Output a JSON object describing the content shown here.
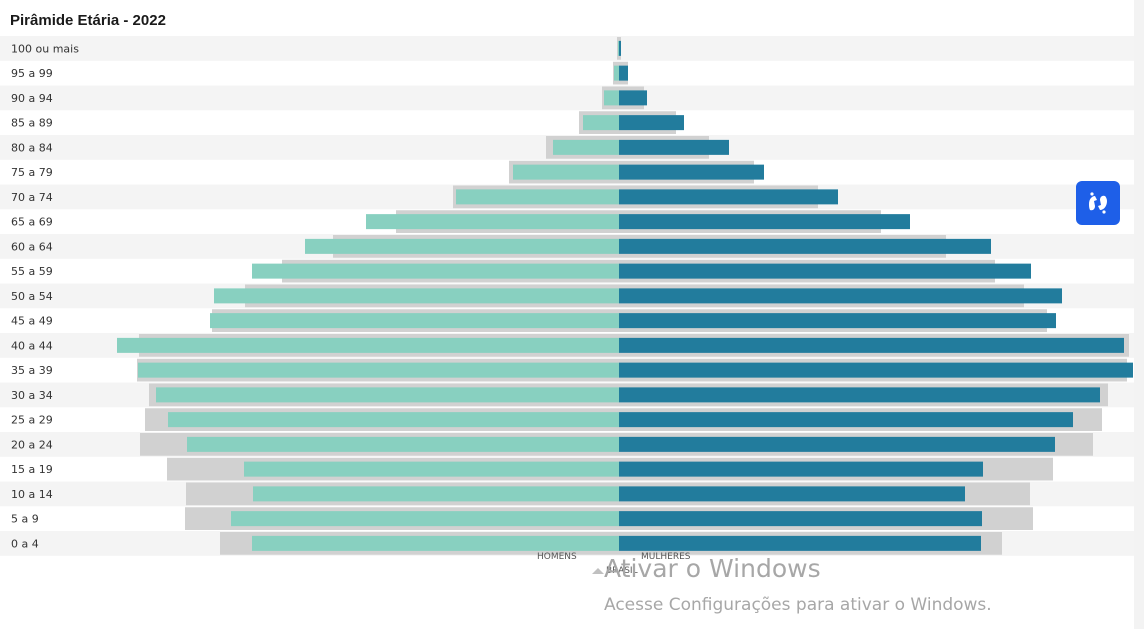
{
  "chart_data": {
    "type": "bar",
    "orientation": "horizontal-pyramid",
    "title": "Pirâmide Etária - 2022",
    "categories": [
      "100 ou mais",
      "95 a 99",
      "90 a 94",
      "85 a 89",
      "80 a 84",
      "75 a 79",
      "70 a 74",
      "65 a 69",
      "60 a 64",
      "55 a 59",
      "50 a 54",
      "45 a 49",
      "40 a 44",
      "35 a 39",
      "30 a 34",
      "25 a 29",
      "20 a 24",
      "15 a 19",
      "10 a 14",
      "5 a 9",
      "0 a 4"
    ],
    "series": [
      {
        "name": "HOMENS",
        "side": "left",
        "color": "#88d0c0",
        "values": [
          1,
          5,
          15,
          36,
          66,
          106,
          163,
          253,
          314,
          367,
          405,
          409,
          502,
          481,
          463,
          451,
          432,
          375,
          366,
          388,
          367
        ]
      },
      {
        "name": "MULHERES",
        "side": "right",
        "color": "#227c9d",
        "values": [
          2,
          9,
          28,
          65,
          110,
          145,
          219,
          291,
          372,
          412,
          443,
          437,
          505,
          514,
          481,
          454,
          436,
          364,
          346,
          363,
          362
        ]
      },
      {
        "name": "BRASIL-HOMENS",
        "side": "left",
        "color": "#d1d1d1",
        "values": [
          2,
          6,
          17,
          40,
          73,
          110,
          166,
          223,
          286,
          337,
          374,
          407,
          480,
          482,
          470,
          474,
          479,
          452,
          433,
          434,
          399
        ]
      },
      {
        "name": "BRASIL-MULHERES",
        "side": "right",
        "color": "#d1d1d1",
        "values": [
          2,
          9,
          25,
          57,
          90,
          135,
          199,
          262,
          327,
          376,
          405,
          428,
          510,
          508,
          489,
          483,
          474,
          434,
          411,
          414,
          383
        ]
      }
    ],
    "legend": {
      "placement": "bottom-center",
      "items": [
        "HOMENS",
        "MULHERES",
        "BRASIL"
      ]
    },
    "grid": false
  },
  "watermark": {
    "title": "Ativar o Windows",
    "subtitle": "Acesse Configurações para ativar o Windows."
  },
  "libras_icon": "hands-sign-language-icon",
  "colors": {
    "men": "#88d0c0",
    "women": "#227c9d",
    "reference": "#d1d1d1",
    "row_stripe": "#f4f4f4",
    "accessibility_button": "#1e5fe8"
  }
}
